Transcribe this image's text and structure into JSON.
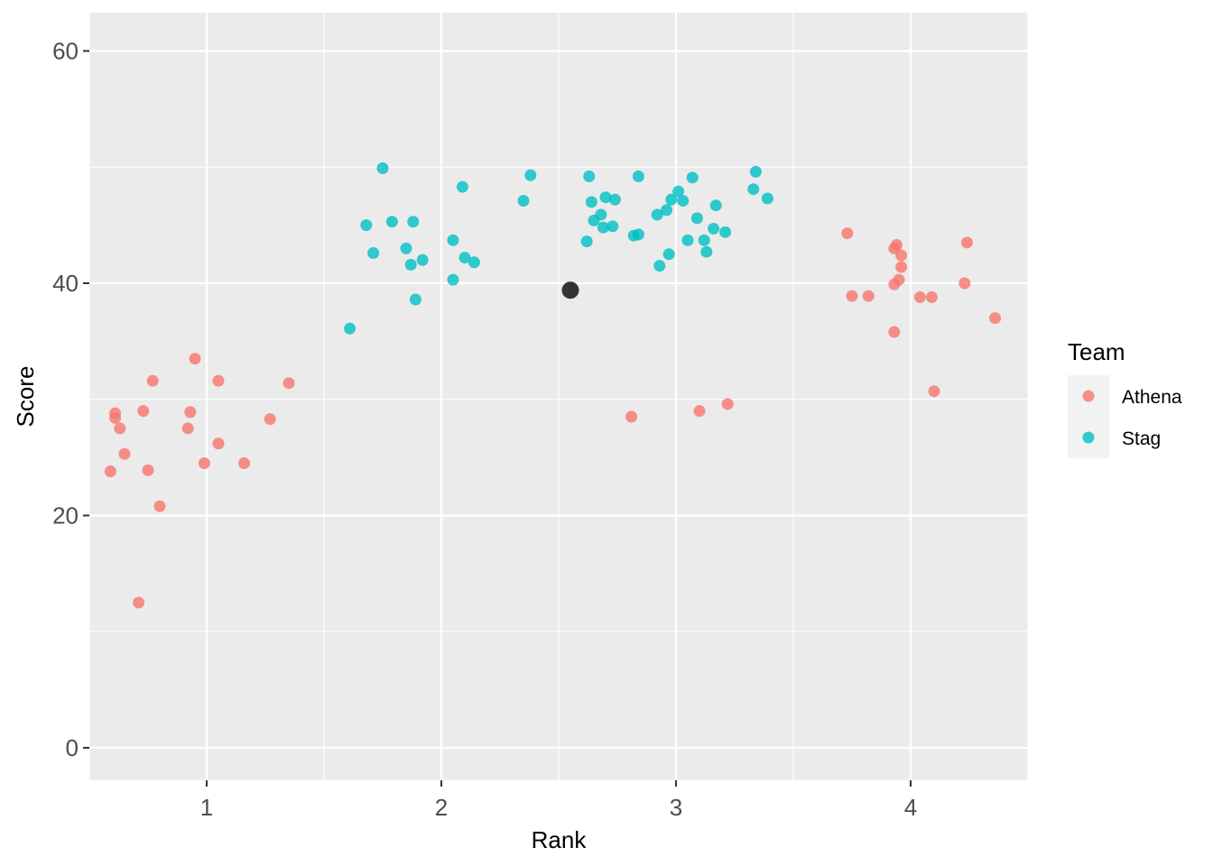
{
  "chart_data": {
    "type": "scatter",
    "xlabel": "Rank",
    "ylabel": "Score",
    "xlim": [
      0.5,
      4.5
    ],
    "ylim": [
      -2.8,
      63.3
    ],
    "x_ticks": [
      1,
      2,
      3,
      4
    ],
    "x_tick_labels": [
      "1",
      "2",
      "3",
      "4"
    ],
    "y_ticks": [
      0,
      20,
      40,
      60
    ],
    "y_tick_labels": [
      "0",
      "20",
      "40",
      "60"
    ],
    "grid": true,
    "legend": {
      "title": "Team",
      "position": "right"
    },
    "series": [
      {
        "name": "Athena",
        "color": "#F8766D",
        "points": [
          [
            0.59,
            23.8
          ],
          [
            0.61,
            28.4
          ],
          [
            0.61,
            28.8
          ],
          [
            0.63,
            27.5
          ],
          [
            0.65,
            25.3
          ],
          [
            0.71,
            12.5
          ],
          [
            0.73,
            29.0
          ],
          [
            0.75,
            23.9
          ],
          [
            0.77,
            31.6
          ],
          [
            0.8,
            20.8
          ],
          [
            0.92,
            27.5
          ],
          [
            0.93,
            28.9
          ],
          [
            0.95,
            33.5
          ],
          [
            0.99,
            24.5
          ],
          [
            1.05,
            31.6
          ],
          [
            1.05,
            26.2
          ],
          [
            1.16,
            24.5
          ],
          [
            1.27,
            28.3
          ],
          [
            1.35,
            31.4
          ],
          [
            2.81,
            28.5
          ],
          [
            3.1,
            29.0
          ],
          [
            3.22,
            29.6
          ],
          [
            3.73,
            44.3
          ],
          [
            3.75,
            38.9
          ],
          [
            3.82,
            38.9
          ],
          [
            3.93,
            43.0
          ],
          [
            3.93,
            39.9
          ],
          [
            3.93,
            35.8
          ],
          [
            3.94,
            43.3
          ],
          [
            3.95,
            40.3
          ],
          [
            3.96,
            42.4
          ],
          [
            3.96,
            41.4
          ],
          [
            4.04,
            38.8
          ],
          [
            4.09,
            38.8
          ],
          [
            4.1,
            30.7
          ],
          [
            4.23,
            40.0
          ],
          [
            4.24,
            43.5
          ],
          [
            4.36,
            37.0
          ]
        ]
      },
      {
        "name": "Stag",
        "color": "#00BFC4",
        "points": [
          [
            1.61,
            36.1
          ],
          [
            1.68,
            45.0
          ],
          [
            1.71,
            42.6
          ],
          [
            1.75,
            49.9
          ],
          [
            1.79,
            45.3
          ],
          [
            1.85,
            43.0
          ],
          [
            1.87,
            41.6
          ],
          [
            1.88,
            45.3
          ],
          [
            1.89,
            38.6
          ],
          [
            1.92,
            42.0
          ],
          [
            2.05,
            40.3
          ],
          [
            2.05,
            43.7
          ],
          [
            2.09,
            48.3
          ],
          [
            2.1,
            42.2
          ],
          [
            2.14,
            41.8
          ],
          [
            2.35,
            47.1
          ],
          [
            2.38,
            49.3
          ],
          [
            2.62,
            43.6
          ],
          [
            2.63,
            49.2
          ],
          [
            2.64,
            47.0
          ],
          [
            2.65,
            45.4
          ],
          [
            2.68,
            45.9
          ],
          [
            2.69,
            44.8
          ],
          [
            2.7,
            47.4
          ],
          [
            2.73,
            44.9
          ],
          [
            2.74,
            47.2
          ],
          [
            2.82,
            44.1
          ],
          [
            2.84,
            49.2
          ],
          [
            2.84,
            44.2
          ],
          [
            2.92,
            45.9
          ],
          [
            2.93,
            41.5
          ],
          [
            2.96,
            46.3
          ],
          [
            2.97,
            42.5
          ],
          [
            2.98,
            47.2
          ],
          [
            3.01,
            47.9
          ],
          [
            3.03,
            47.1
          ],
          [
            3.05,
            43.7
          ],
          [
            3.07,
            49.1
          ],
          [
            3.09,
            45.6
          ],
          [
            3.12,
            43.7
          ],
          [
            3.13,
            42.7
          ],
          [
            3.16,
            44.7
          ],
          [
            3.17,
            46.7
          ],
          [
            3.21,
            44.4
          ],
          [
            3.33,
            48.1
          ],
          [
            3.34,
            49.6
          ],
          [
            3.39,
            47.3
          ]
        ]
      },
      {
        "color": "#333333",
        "points": [
          [
            2.55,
            39.4
          ]
        ]
      }
    ]
  }
}
